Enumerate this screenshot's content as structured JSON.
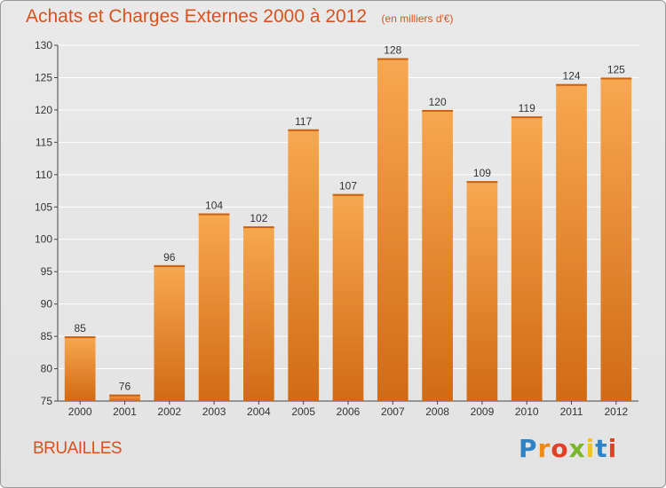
{
  "chart_data": {
    "type": "bar",
    "title": "Achats et Charges Externes 2000 à 2012",
    "subtitle": "(en milliers d'€)",
    "xlabel": "",
    "ylabel": "",
    "categories": [
      "2000",
      "2001",
      "2002",
      "2003",
      "2004",
      "2005",
      "2006",
      "2007",
      "2008",
      "2009",
      "2010",
      "2011",
      "2012"
    ],
    "values": [
      85,
      76,
      96,
      104,
      102,
      117,
      107,
      128,
      120,
      109,
      119,
      124,
      125
    ],
    "ylim": [
      75,
      130
    ],
    "yticks": [
      75,
      80,
      85,
      90,
      95,
      100,
      105,
      110,
      115,
      120,
      125,
      130
    ],
    "grid": true,
    "bar_color_light": "#f7a850",
    "bar_color_dark": "#d26a14",
    "grid_color": "#ffffff"
  },
  "footer": {
    "commune": "BRUAILLES",
    "logo": {
      "letters": [
        "P",
        "r",
        "o",
        "x",
        "i",
        "t",
        "i"
      ],
      "colors": [
        "#2f83c5",
        "#f08a16",
        "#e23f26",
        "#7ab728",
        "#f3c321",
        "#2f83c5",
        "#e23f26"
      ]
    }
  },
  "theme": {
    "title_color": "#d9521e"
  }
}
